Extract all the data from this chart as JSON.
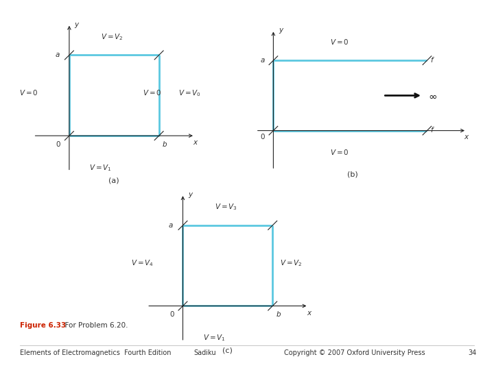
{
  "bg_color": "#ffffff",
  "line_color": "#5bc8e0",
  "line_width": 2.0,
  "axis_color": "#222222",
  "text_color": "#333333",
  "arrow_color": "#222222",
  "caption_color": "#cc2200",
  "fig_label": "Figure 6.33",
  "fig_caption": "  For Problem 6.20.",
  "footer_left": "Elements of Electromagnetics  Fourth Edition",
  "footer_mid": "Sadiku",
  "footer_right": "Copyright © 2007 Oxford University Press",
  "footer_page": "34"
}
